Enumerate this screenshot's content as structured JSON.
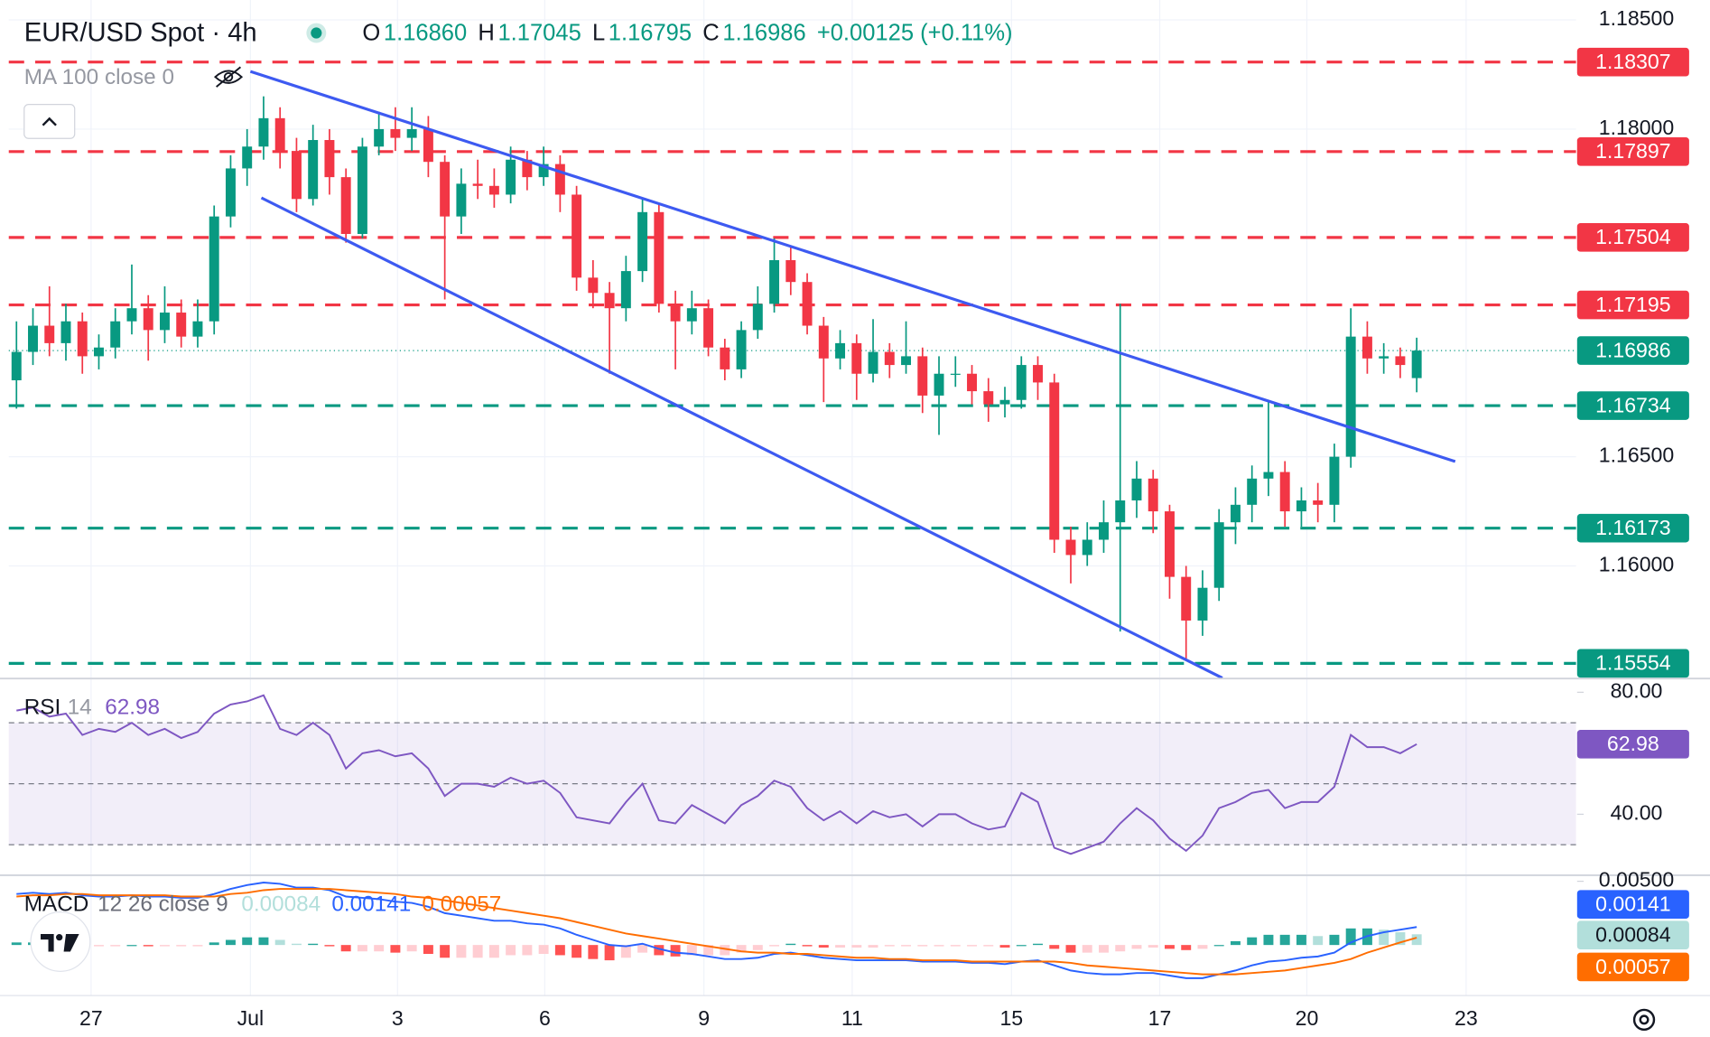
{
  "chart_data": {
    "type": "candlestick",
    "title": "EUR/USD Spot · 4h",
    "legend": [
      {
        "label": "O",
        "value": "1.16860"
      },
      {
        "label": "H",
        "value": "1.17045"
      },
      {
        "label": "L",
        "value": "1.16795"
      },
      {
        "label": "C",
        "value": "1.16986"
      }
    ],
    "change": "+0.00125 (+0.11%)",
    "indicator": "MA 100 close 0",
    "up_color": "#089981",
    "down_color": "#f23645",
    "candles": [
      [
        1.1685,
        1.1712,
        1.1672,
        1.1698
      ],
      [
        1.1698,
        1.1718,
        1.1692,
        1.171
      ],
      [
        1.171,
        1.1728,
        1.1696,
        1.1702
      ],
      [
        1.1702,
        1.172,
        1.1694,
        1.1712
      ],
      [
        1.1712,
        1.1716,
        1.1688,
        1.1696
      ],
      [
        1.1696,
        1.1706,
        1.169,
        1.17
      ],
      [
        1.17,
        1.1718,
        1.1695,
        1.1712
      ],
      [
        1.1712,
        1.1738,
        1.1706,
        1.1718
      ],
      [
        1.1718,
        1.1724,
        1.1694,
        1.1708
      ],
      [
        1.1708,
        1.1728,
        1.1702,
        1.1716
      ],
      [
        1.1716,
        1.1722,
        1.17,
        1.1705
      ],
      [
        1.1705,
        1.1722,
        1.17,
        1.1712
      ],
      [
        1.1712,
        1.1765,
        1.1706,
        1.176
      ],
      [
        1.176,
        1.1788,
        1.1755,
        1.1782
      ],
      [
        1.1782,
        1.18,
        1.1774,
        1.1792
      ],
      [
        1.1792,
        1.1815,
        1.1786,
        1.1805
      ],
      [
        1.1805,
        1.181,
        1.1782,
        1.179
      ],
      [
        1.179,
        1.1796,
        1.1762,
        1.1768
      ],
      [
        1.1768,
        1.1802,
        1.1765,
        1.1795
      ],
      [
        1.1795,
        1.18,
        1.177,
        1.1778
      ],
      [
        1.1778,
        1.1782,
        1.1748,
        1.1752
      ],
      [
        1.1752,
        1.1796,
        1.175,
        1.1792
      ],
      [
        1.1792,
        1.1808,
        1.1788,
        1.18
      ],
      [
        1.18,
        1.181,
        1.179,
        1.1796
      ],
      [
        1.1796,
        1.181,
        1.179,
        1.18
      ],
      [
        1.18,
        1.1806,
        1.1778,
        1.1785
      ],
      [
        1.1785,
        1.1788,
        1.1722,
        1.176
      ],
      [
        1.176,
        1.1782,
        1.1752,
        1.1775
      ],
      [
        1.1775,
        1.1786,
        1.1768,
        1.1774
      ],
      [
        1.1774,
        1.1782,
        1.1764,
        1.177
      ],
      [
        1.177,
        1.1792,
        1.1766,
        1.1786
      ],
      [
        1.1786,
        1.179,
        1.1772,
        1.1778
      ],
      [
        1.1778,
        1.1792,
        1.1774,
        1.1784
      ],
      [
        1.1784,
        1.1788,
        1.1762,
        1.177
      ],
      [
        1.177,
        1.1774,
        1.1726,
        1.1732
      ],
      [
        1.1732,
        1.174,
        1.1718,
        1.1725
      ],
      [
        1.1725,
        1.173,
        1.1688,
        1.1718
      ],
      [
        1.1718,
        1.1742,
        1.1712,
        1.1735
      ],
      [
        1.1735,
        1.1768,
        1.173,
        1.1762
      ],
      [
        1.1762,
        1.1766,
        1.1716,
        1.172
      ],
      [
        1.172,
        1.1726,
        1.169,
        1.1712
      ],
      [
        1.1712,
        1.1726,
        1.1706,
        1.1718
      ],
      [
        1.1718,
        1.1722,
        1.1696,
        1.17
      ],
      [
        1.17,
        1.1704,
        1.1685,
        1.169
      ],
      [
        1.169,
        1.1712,
        1.1686,
        1.1708
      ],
      [
        1.1708,
        1.1728,
        1.1704,
        1.172
      ],
      [
        1.172,
        1.175,
        1.1716,
        1.174
      ],
      [
        1.174,
        1.1746,
        1.1724,
        1.173
      ],
      [
        1.173,
        1.1734,
        1.1706,
        1.171
      ],
      [
        1.171,
        1.1714,
        1.1675,
        1.1695
      ],
      [
        1.1695,
        1.1708,
        1.169,
        1.1702
      ],
      [
        1.1702,
        1.1706,
        1.1676,
        1.1688
      ],
      [
        1.1688,
        1.1713,
        1.1684,
        1.1698
      ],
      [
        1.1698,
        1.1702,
        1.1686,
        1.1692
      ],
      [
        1.1692,
        1.1712,
        1.1688,
        1.1696
      ],
      [
        1.1696,
        1.17,
        1.167,
        1.1678
      ],
      [
        1.1678,
        1.1696,
        1.166,
        1.1688
      ],
      [
        1.1688,
        1.1696,
        1.1682,
        1.1688
      ],
      [
        1.1688,
        1.1692,
        1.1674,
        1.168
      ],
      [
        1.168,
        1.1686,
        1.1666,
        1.1674
      ],
      [
        1.1674,
        1.1682,
        1.1668,
        1.1676
      ],
      [
        1.1676,
        1.1696,
        1.1672,
        1.1692
      ],
      [
        1.1692,
        1.1696,
        1.1676,
        1.1684
      ],
      [
        1.1684,
        1.1688,
        1.1606,
        1.1612
      ],
      [
        1.1612,
        1.1618,
        1.1592,
        1.1605
      ],
      [
        1.1605,
        1.162,
        1.16,
        1.1612
      ],
      [
        1.1612,
        1.163,
        1.1606,
        1.162
      ],
      [
        1.162,
        1.172,
        1.157,
        1.163
      ],
      [
        1.163,
        1.1648,
        1.1622,
        1.164
      ],
      [
        1.164,
        1.1644,
        1.1615,
        1.1625
      ],
      [
        1.1625,
        1.1628,
        1.1585,
        1.1595
      ],
      [
        1.1595,
        1.16,
        1.1557,
        1.1575
      ],
      [
        1.1575,
        1.1598,
        1.1568,
        1.159
      ],
      [
        1.159,
        1.1626,
        1.1584,
        1.162
      ],
      [
        1.162,
        1.1636,
        1.161,
        1.1628
      ],
      [
        1.1628,
        1.1646,
        1.162,
        1.164
      ],
      [
        1.164,
        1.1675,
        1.1632,
        1.1643
      ],
      [
        1.1643,
        1.1648,
        1.1618,
        1.1625
      ],
      [
        1.1625,
        1.1636,
        1.1618,
        1.163
      ],
      [
        1.163,
        1.1638,
        1.162,
        1.1628
      ],
      [
        1.1628,
        1.1656,
        1.162,
        1.165
      ],
      [
        1.165,
        1.1718,
        1.1645,
        1.1705
      ],
      [
        1.1705,
        1.1712,
        1.1688,
        1.1695
      ],
      [
        1.1695,
        1.1702,
        1.1688,
        1.1696
      ],
      [
        1.1696,
        1.17,
        1.1686,
        1.1692
      ],
      [
        1.1686,
        1.17045,
        1.16795,
        1.16986
      ]
    ],
    "xlim": [
      -0.467,
      94.67
    ],
    "xticks": [
      {
        "value": 4.53,
        "label": "27"
      },
      {
        "value": 14.2,
        "label": "Jul"
      },
      {
        "value": 23.13,
        "label": "3"
      },
      {
        "value": 32.07,
        "label": "6"
      },
      {
        "value": 41.73,
        "label": "9"
      },
      {
        "value": 50.73,
        "label": "11"
      },
      {
        "value": 60.4,
        "label": "15"
      },
      {
        "value": 69.4,
        "label": "17"
      },
      {
        "value": 78.33,
        "label": "20"
      },
      {
        "value": 88,
        "label": "23"
      }
    ],
    "ylim": [
      1.15487,
      1.18591
    ],
    "yticks": [
      {
        "value": 1.185,
        "label": "1.18500"
      },
      {
        "value": 1.18,
        "label": "1.18000"
      },
      {
        "value": 1.165,
        "label": "1.16500"
      },
      {
        "value": 1.16,
        "label": "1.16000"
      }
    ],
    "grid": true,
    "levels": [
      {
        "value": 1.18307,
        "label": "1.18307",
        "color": "#f23645"
      },
      {
        "value": 1.17897,
        "label": "1.17897",
        "color": "#f23645"
      },
      {
        "value": 1.17504,
        "label": "1.17504",
        "color": "#f23645"
      },
      {
        "value": 1.17195,
        "label": "1.17195",
        "color": "#f23645"
      },
      {
        "value": 1.16734,
        "label": "1.16734",
        "color": "#089981"
      },
      {
        "value": 1.16173,
        "label": "1.16173",
        "color": "#089981"
      },
      {
        "value": 1.15554,
        "label": "1.15554",
        "color": "#089981"
      }
    ],
    "last": {
      "value": 1.16986,
      "label": "1.16986",
      "color": "#089981"
    },
    "rsi": {
      "name": "RSI",
      "params": "14",
      "value_label": "62.98",
      "color": "#7e57c2",
      "values": [
        74,
        75,
        72,
        73,
        66,
        68,
        67,
        70,
        66,
        68,
        65,
        67,
        73,
        76,
        77,
        79,
        68,
        66,
        70,
        66,
        55,
        60,
        61,
        59,
        60,
        55,
        46,
        50,
        50,
        49,
        52,
        50,
        51,
        47,
        39,
        38,
        37,
        44,
        50,
        38,
        37,
        43,
        40,
        37,
        43,
        46,
        51,
        49,
        42,
        38,
        41,
        37,
        41,
        39,
        40,
        36,
        40,
        40,
        37,
        35,
        36,
        47,
        44,
        29,
        27,
        29,
        31,
        37,
        42,
        38,
        32,
        28,
        33,
        42,
        44,
        47,
        48,
        42,
        44,
        44,
        49,
        66,
        62,
        62,
        60,
        62.98
      ],
      "ylim": [
        20.54,
        84.68
      ],
      "yticks": [
        {
          "value": 80,
          "label": "80.00"
        },
        {
          "value": 40,
          "label": "40.00"
        }
      ],
      "bands": [
        70,
        50,
        30
      ]
    },
    "macd": {
      "name": "MACD",
      "params": "12 26 close 9",
      "ylim": [
        -0.00388,
        0.00543
      ],
      "yticks": [
        {
          "value": 0.005,
          "label": "0.00500"
        }
      ],
      "histogram": {
        "last_label": "0.00084",
        "colors": [
          "#26a69a",
          "#b2dfdb",
          "#ff5252",
          "#ffcdd2"
        ],
        "values": [
          0.0002,
          0.0002,
          0.0001,
          0.0001,
          -0.0001,
          -0.0001,
          -0.0001,
          0,
          -0.0001,
          -0.0001,
          -0.0001,
          -0.0001,
          0.0002,
          0.0004,
          0.0006,
          0.0006,
          0.0004,
          0.0001,
          0.0001,
          -0.0001,
          -0.0005,
          -0.0005,
          -0.0005,
          -0.0006,
          -0.0005,
          -0.0007,
          -0.001,
          -0.001,
          -0.001,
          -0.001,
          -0.0008,
          -0.0008,
          -0.0007,
          -0.0008,
          -0.001,
          -0.0011,
          -0.0012,
          -0.001,
          -0.0006,
          -0.0008,
          -0.0009,
          -0.0008,
          -0.0008,
          -0.0008,
          -0.0006,
          -0.0004,
          -0.0001,
          0.0001,
          -0.0001,
          -0.0002,
          -0.0002,
          -0.0002,
          -0.0002,
          -0.0001,
          -0.0001,
          -0.0001,
          -0.0001,
          -0.0001,
          -0.0001,
          -0.0001,
          -0.0002,
          0,
          0.0001,
          -0.0003,
          -0.0006,
          -0.0006,
          -0.0006,
          -0.0005,
          -0.0003,
          -0.0002,
          -0.0003,
          -0.0004,
          -0.0003,
          0,
          0.0003,
          0.0006,
          0.0008,
          0.0008,
          0.0008,
          0.0007,
          0.0008,
          0.0013,
          0.0013,
          0.0012,
          0.001,
          0.00084
        ]
      },
      "macd_line": {
        "last_label": "0.00141",
        "color": "#2962ff",
        "values": [
          0.004,
          0.0041,
          0.004,
          0.0041,
          0.0039,
          0.0038,
          0.0038,
          0.0039,
          0.0038,
          0.0038,
          0.0037,
          0.0037,
          0.004,
          0.0044,
          0.0047,
          0.0049,
          0.0048,
          0.0045,
          0.0045,
          0.0043,
          0.0038,
          0.0037,
          0.0036,
          0.0034,
          0.0033,
          0.003,
          0.0025,
          0.0023,
          0.0021,
          0.0019,
          0.0019,
          0.0017,
          0.0016,
          0.0013,
          0.0008,
          0.0004,
          0.0,
          -0.0001,
          0.0001,
          -0.0003,
          -0.0006,
          -0.0007,
          -0.0009,
          -0.0011,
          -0.0011,
          -0.001,
          -0.0007,
          -0.0006,
          -0.0008,
          -0.001,
          -0.0011,
          -0.0012,
          -0.0012,
          -0.0012,
          -0.0012,
          -0.0013,
          -0.0013,
          -0.0013,
          -0.0014,
          -0.0014,
          -0.0015,
          -0.0013,
          -0.0012,
          -0.0016,
          -0.002,
          -0.0022,
          -0.0023,
          -0.0023,
          -0.0022,
          -0.0022,
          -0.0024,
          -0.0026,
          -0.0026,
          -0.0023,
          -0.002,
          -0.0016,
          -0.0013,
          -0.0012,
          -0.001,
          -0.0009,
          -0.0006,
          0.0002,
          0.0007,
          0.001,
          0.0012,
          0.00141
        ]
      },
      "signal_line": {
        "last_label": "0.00057",
        "color": "#ff6d00",
        "values": [
          0.0038,
          0.0039,
          0.0039,
          0.004,
          0.004,
          0.0039,
          0.0039,
          0.0039,
          0.0039,
          0.0039,
          0.0038,
          0.0038,
          0.0038,
          0.004,
          0.0041,
          0.0043,
          0.0044,
          0.0044,
          0.0044,
          0.0044,
          0.0043,
          0.0042,
          0.0041,
          0.004,
          0.0038,
          0.0037,
          0.0035,
          0.0033,
          0.0031,
          0.0029,
          0.0027,
          0.0025,
          0.0023,
          0.0021,
          0.0018,
          0.0015,
          0.0012,
          0.0009,
          0.0007,
          0.0005,
          0.0003,
          0.0001,
          -0.0001,
          -0.0003,
          -0.0005,
          -0.0006,
          -0.0006,
          -0.0007,
          -0.0007,
          -0.0008,
          -0.0009,
          -0.001,
          -0.001,
          -0.0011,
          -0.0011,
          -0.0012,
          -0.0012,
          -0.0012,
          -0.0013,
          -0.0013,
          -0.0013,
          -0.0013,
          -0.0013,
          -0.0013,
          -0.0014,
          -0.0016,
          -0.0017,
          -0.0018,
          -0.0019,
          -0.002,
          -0.0021,
          -0.0022,
          -0.0023,
          -0.0023,
          -0.0023,
          -0.0022,
          -0.0021,
          -0.002,
          -0.0018,
          -0.0016,
          -0.0014,
          -0.0011,
          -0.0006,
          -0.0002,
          0.0002,
          0.00057
        ]
      }
    }
  }
}
